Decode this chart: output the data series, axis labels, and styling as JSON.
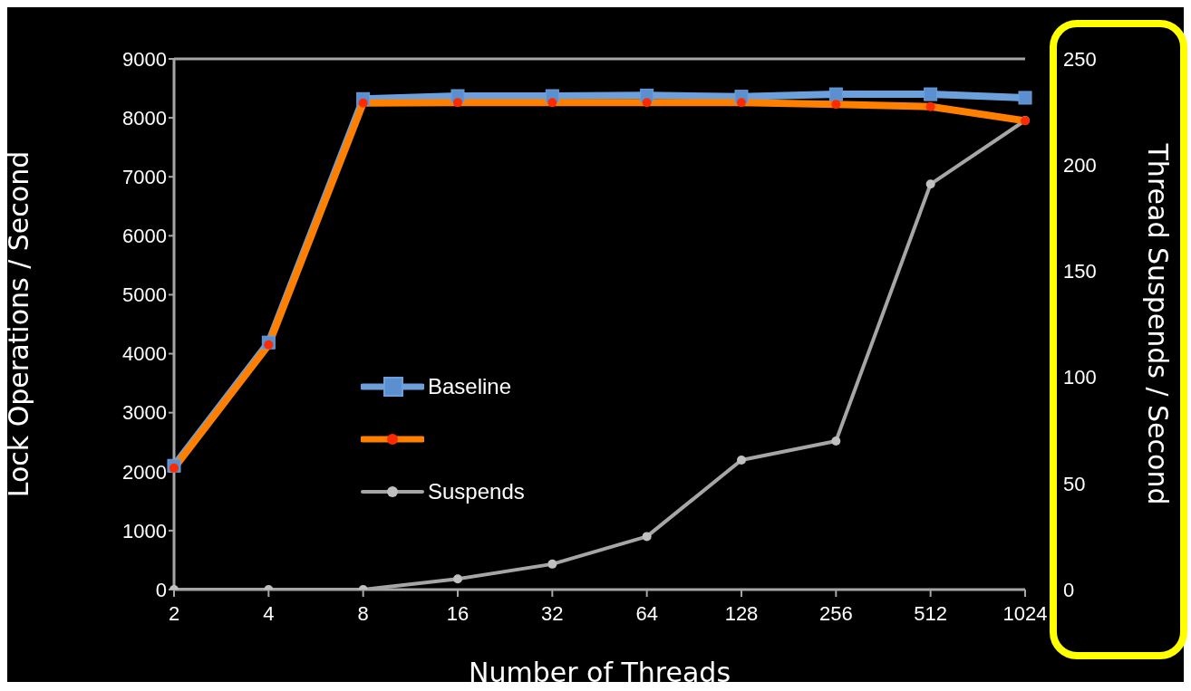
{
  "chart_data": {
    "type": "line",
    "xlabel": "Number of Threads",
    "ylabel": "Lock Operations / Second",
    "y2label": "Thread Suspends / Second",
    "categories": [
      "2",
      "4",
      "8",
      "16",
      "32",
      "64",
      "128",
      "256",
      "512",
      "1024"
    ],
    "series": [
      {
        "name": "Baseline",
        "color": "#6ca0dc",
        "marker": "square",
        "values": [
          2100,
          4190,
          8320,
          8370,
          8370,
          8380,
          8360,
          8400,
          8400,
          8340
        ]
      },
      {
        "color": "#ff7f00",
        "marker": "circle",
        "values": [
          2060,
          4150,
          8250,
          8260,
          8260,
          8260,
          8260,
          8230,
          8190,
          7950
        ]
      },
      {
        "name": "Suspends",
        "color": "#a6a6a6",
        "marker": "circle",
        "axis": "y2",
        "values": [
          0,
          0,
          0,
          5,
          12,
          25,
          61,
          70,
          191,
          221
        ]
      }
    ],
    "ylim": [
      0,
      9000
    ],
    "yticks": [
      0,
      1000,
      2000,
      3000,
      4000,
      5000,
      6000,
      7000,
      8000,
      9000
    ],
    "y2lim": [
      0,
      250
    ],
    "y2ticks": [
      0,
      50,
      100,
      150,
      200,
      250
    ],
    "legend": "center",
    "line_style": "solid"
  }
}
